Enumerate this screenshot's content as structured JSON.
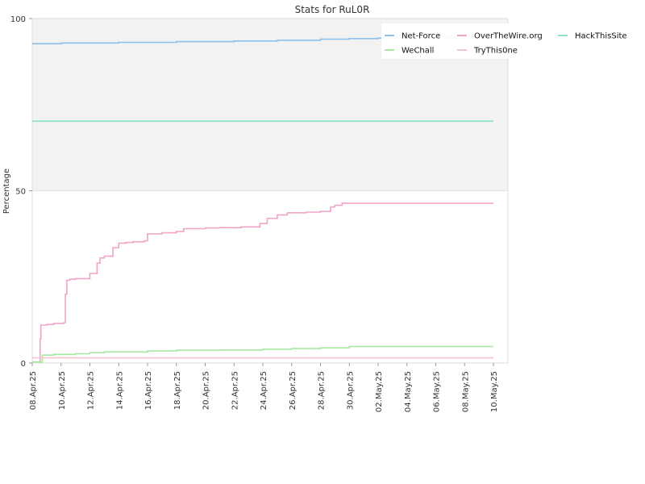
{
  "chart_data": {
    "type": "line",
    "title": "Stats for RuL0R",
    "xlabel": "",
    "ylabel": "Percentage",
    "ylim": [
      0,
      100
    ],
    "xlim": [
      "2025-04-08",
      "2025-05-10"
    ],
    "yticks": [
      "0",
      "50",
      "100"
    ],
    "x_tick_labels": [
      "08.Apr.25",
      "10.Apr.25",
      "12.Apr.25",
      "14.Apr.25",
      "16.Apr.25",
      "18.Apr.25",
      "20.Apr.25",
      "22.Apr.25",
      "24.Apr.25",
      "26.Apr.25",
      "28.Apr.25",
      "30.Apr.25",
      "02.May.25",
      "04.May.25",
      "06.May.25",
      "08.May.25",
      "10.May.25"
    ],
    "x_tick_dates": [
      "2025-04-08",
      "2025-04-10",
      "2025-04-12",
      "2025-04-14",
      "2025-04-16",
      "2025-04-18",
      "2025-04-20",
      "2025-04-22",
      "2025-04-24",
      "2025-04-26",
      "2025-04-28",
      "2025-04-30",
      "2025-05-02",
      "2025-05-04",
      "2025-05-06",
      "2025-05-08",
      "2025-05-10"
    ],
    "grid": false,
    "band": {
      "from": 50,
      "to": 100,
      "color": "#f2f2f2"
    },
    "legend_position": "top-right",
    "series": [
      {
        "name": "Net-Force",
        "color": "#8cc0ee",
        "step": true,
        "points": [
          [
            "2025-04-08",
            92.7
          ],
          [
            "2025-04-10",
            92.9
          ],
          [
            "2025-04-14",
            93.1
          ],
          [
            "2025-04-18",
            93.3
          ],
          [
            "2025-04-22",
            93.5
          ],
          [
            "2025-04-25",
            93.7
          ],
          [
            "2025-04-28",
            94.0
          ],
          [
            "2025-04-30",
            94.2
          ],
          [
            "2025-05-02",
            94.3
          ],
          [
            "2025-05-05",
            94.5
          ],
          [
            "2025-05-08",
            94.7
          ],
          [
            "2025-05-10",
            94.8
          ]
        ]
      },
      {
        "name": "OverTheWire.org",
        "color": "#f0a5c8",
        "step": true,
        "points": [
          [
            "2025-04-08",
            0.3
          ],
          [
            "2025-04-08.5",
            0.3
          ],
          [
            "2025-04-08.55",
            7
          ],
          [
            "2025-04-08.6",
            11
          ],
          [
            "2025-04-09",
            11.2
          ],
          [
            "2025-04-09.5",
            11.5
          ],
          [
            "2025-04-10.2",
            11.7
          ],
          [
            "2025-04-10.3",
            20
          ],
          [
            "2025-04-10.4",
            24
          ],
          [
            "2025-04-10.6",
            24.3
          ],
          [
            "2025-04-11",
            24.5
          ],
          [
            "2025-04-12",
            26
          ],
          [
            "2025-04-12.5",
            29
          ],
          [
            "2025-04-12.7",
            30.5
          ],
          [
            "2025-04-13",
            31
          ],
          [
            "2025-04-13.6",
            33.5
          ],
          [
            "2025-04-14",
            34.8
          ],
          [
            "2025-04-14.5",
            35
          ],
          [
            "2025-04-15",
            35.2
          ],
          [
            "2025-04-15.8",
            35.5
          ],
          [
            "2025-04-16",
            37.5
          ],
          [
            "2025-04-17",
            37.8
          ],
          [
            "2025-04-18",
            38.2
          ],
          [
            "2025-04-18.5",
            39
          ],
          [
            "2025-04-20",
            39.2
          ],
          [
            "2025-04-21",
            39.3
          ],
          [
            "2025-04-22.5",
            39.5
          ],
          [
            "2025-04-23.8",
            40.5
          ],
          [
            "2025-04-24.3",
            42
          ],
          [
            "2025-04-25",
            43
          ],
          [
            "2025-04-25.7",
            43.6
          ],
          [
            "2025-04-27",
            43.8
          ],
          [
            "2025-04-28",
            44
          ],
          [
            "2025-04-28.7",
            45.3
          ],
          [
            "2025-04-29",
            45.8
          ],
          [
            "2025-04-29.5",
            46.4
          ],
          [
            "2025-05-10",
            46.4
          ]
        ]
      },
      {
        "name": "HackThisSite",
        "color": "#8de2c6",
        "step": false,
        "points": [
          [
            "2025-04-08",
            70.2
          ],
          [
            "2025-05-10",
            70.2
          ]
        ]
      },
      {
        "name": "WeChall",
        "color": "#a7e8a0",
        "step": true,
        "points": [
          [
            "2025-04-08",
            0.3
          ],
          [
            "2025-04-08.6",
            0.3
          ],
          [
            "2025-04-08.7",
            2.3
          ],
          [
            "2025-04-09.5",
            2.5
          ],
          [
            "2025-04-11",
            2.7
          ],
          [
            "2025-04-12",
            3
          ],
          [
            "2025-04-13",
            3.2
          ],
          [
            "2025-04-16",
            3.5
          ],
          [
            "2025-04-18",
            3.7
          ],
          [
            "2025-04-21",
            3.8
          ],
          [
            "2025-04-24",
            4
          ],
          [
            "2025-04-26",
            4.2
          ],
          [
            "2025-04-28",
            4.4
          ],
          [
            "2025-04-30",
            4.8
          ],
          [
            "2025-05-10",
            4.8
          ]
        ]
      },
      {
        "name": "TryThis0ne",
        "color": "#f5c4cc",
        "step": false,
        "points": [
          [
            "2025-04-08",
            1.5
          ],
          [
            "2025-05-10",
            1.5
          ]
        ]
      }
    ]
  }
}
